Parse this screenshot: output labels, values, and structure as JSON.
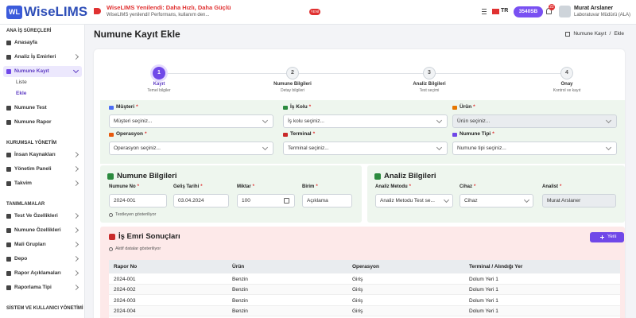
{
  "header": {
    "logo_badge": "WL",
    "logo": "WiseLIMS",
    "announcement": {
      "title": "WiseLIMS Yenilendi: Daha Hızlı, Daha Güçlü",
      "text": "WiseLIMS yenilendi! Performans, kullanım den...",
      "badge": "YENİ"
    },
    "language": "TR",
    "credits": "3540SB",
    "notifications": "22",
    "user": {
      "name": "Murat Arslaner",
      "role": "Laboratuvar Müdürü (ALA)"
    }
  },
  "sidebar": {
    "sections": [
      {
        "title": "ANA İŞ SÜREÇLERİ",
        "items": [
          {
            "label": "Anasayfa",
            "arrow": false
          },
          {
            "label": "Analiz İş Emirleri",
            "arrow": true
          },
          {
            "label": "Numune Kayıt",
            "arrow": true,
            "active": true,
            "children": [
              {
                "label": "Liste"
              },
              {
                "label": "Ekle",
                "active": true
              }
            ]
          },
          {
            "label": "Numune Test",
            "arrow": false
          },
          {
            "label": "Numune Rapor",
            "arrow": false
          }
        ]
      },
      {
        "title": "KURUMSAL YÖNETİM",
        "items": [
          {
            "label": "İnsan Kaynakları",
            "arrow": true
          },
          {
            "label": "Yönetim Paneli",
            "arrow": true
          },
          {
            "label": "Takvim",
            "arrow": true
          }
        ]
      },
      {
        "title": "TANIMLAMALAR",
        "items": [
          {
            "label": "Test Ve Özellikleri",
            "arrow": true
          },
          {
            "label": "Numune Özellikleri",
            "arrow": true
          },
          {
            "label": "Mali Grupları",
            "arrow": true
          },
          {
            "label": "Depo",
            "arrow": true
          },
          {
            "label": "Rapor Açıklamaları",
            "arrow": true
          },
          {
            "label": "Raporlama Tipi",
            "arrow": true
          }
        ]
      },
      {
        "title": "SİSTEM VE KULLANICI YÖNETİMİ",
        "items": []
      }
    ]
  },
  "page": {
    "title": "Numune Kayıt Ekle",
    "breadcrumb": [
      "Numune Kayıt",
      "Ekle"
    ],
    "breadcrumb_separator": "/"
  },
  "required_mark": "*",
  "stepper": [
    {
      "number": 1,
      "title": "Kayıt",
      "subtitle": "Temel bilgiler",
      "active": true
    },
    {
      "number": 2,
      "title": "Numune Bilgileri",
      "subtitle": "Detay bilgileri"
    },
    {
      "number": 3,
      "title": "Analiz Bilgileri",
      "subtitle": "Test seçimi"
    },
    {
      "number": 4,
      "title": "Onay",
      "subtitle": "Kontrol ve kayıt"
    }
  ],
  "form": {
    "fields": [
      {
        "label": "Müşteri",
        "placeholder": "Müşteri seçiniz...",
        "icon": "#4c6ef5"
      },
      {
        "label": "İş Kolu",
        "placeholder": "İş kolu seçiniz...",
        "icon": "#2b8a3e"
      },
      {
        "label": "Ürün",
        "placeholder": "Ürün seçiniz...",
        "icon": "#e67700",
        "disabled": true
      },
      {
        "label": "Operasyon",
        "placeholder": "Operasyon seçiniz...",
        "icon": "#e8590c"
      },
      {
        "label": "Terminal",
        "placeholder": "Terminal seçiniz...",
        "icon": "#c92a2a"
      },
      {
        "label": "Numune Tipi",
        "placeholder": "Numune tipi seçiniz...",
        "icon": "#7048e8"
      }
    ]
  },
  "sample_card": {
    "title": "Numune Bilgileri",
    "fields": [
      {
        "label": "Numune No",
        "value": "2024-001"
      },
      {
        "label": "Geliş Tarihi",
        "value": "03.04.2024"
      },
      {
        "label": "Miktar",
        "value": "100"
      },
      {
        "label": "Birim",
        "value": "Açıklama"
      }
    ],
    "note": "Testleyen gösteriliyor"
  },
  "analysis_card": {
    "title": "Analiz Bilgileri",
    "fields": [
      {
        "label": "Analiz Metodu",
        "value": "Analiz Metodu Test se..."
      },
      {
        "label": "Cihaz",
        "value": "Cihaz"
      },
      {
        "label": "Analist",
        "value": "Murat Arslaner",
        "disabled": true
      }
    ]
  },
  "results": {
    "title": "İş Emri Sonuçları",
    "button": "Yeni",
    "note": "Aktif datalar gösteriliyor",
    "columns": [
      "Rapor No",
      "Ürün",
      "Operasyon",
      "Terminal / Alındığı Yer"
    ],
    "rows": [
      [
        "2024-001",
        "Benzin",
        "Giriş",
        "Dolum Yeri 1"
      ],
      [
        "2024-002",
        "Benzin",
        "Giriş",
        "Dolum Yeri 1"
      ],
      [
        "2024-003",
        "Benzin",
        "Giriş",
        "Dolum Yeri 1"
      ],
      [
        "2024-004",
        "Benzin",
        "Giriş",
        "Dolum Yeri 1"
      ]
    ]
  }
}
